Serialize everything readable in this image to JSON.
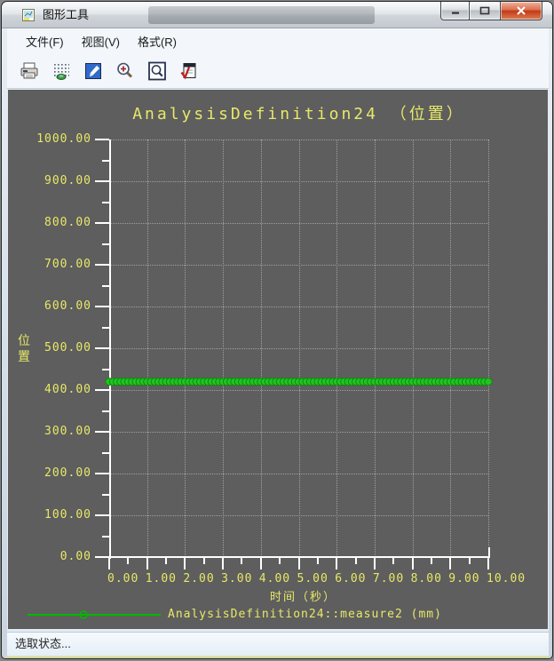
{
  "window": {
    "title": "图形工具"
  },
  "titlebar_controls": {
    "minimize": "minimize",
    "maximize": "maximize",
    "close": "close"
  },
  "menu": {
    "items": [
      {
        "label": "文件(F)"
      },
      {
        "label": "视图(V)"
      },
      {
        "label": "格式(R)"
      }
    ]
  },
  "toolbar": {
    "buttons": [
      {
        "icon": "print-icon"
      },
      {
        "icon": "grid-redraw-icon"
      },
      {
        "icon": "edit-graph-icon"
      },
      {
        "icon": "zoom-in-icon"
      },
      {
        "icon": "zoom-fit-icon"
      },
      {
        "icon": "apply-check-icon"
      }
    ]
  },
  "chart_data": {
    "type": "line",
    "title": "AnalysisDefinition24 （位置）",
    "xlabel": "时间（秒）",
    "ylabel": "位置",
    "xlim": [
      0,
      10
    ],
    "ylim": [
      0,
      1000
    ],
    "x_major_step": 1,
    "x_minor_step": 0.5,
    "y_major_step": 100,
    "y_minor_step": 50,
    "x_tick_labels": [
      "0.00",
      "1.00",
      "2.00",
      "3.00",
      "4.00",
      "5.00",
      "6.00",
      "7.00",
      "8.00",
      "9.00",
      "10.00"
    ],
    "y_tick_labels": [
      "0.00",
      "100.00",
      "200.00",
      "300.00",
      "400.00",
      "500.00",
      "600.00",
      "700.00",
      "800.00",
      "900.00",
      "1000.00"
    ],
    "grid": true,
    "legend_position": "bottom",
    "series": [
      {
        "name": "AnalysisDefinition24::measure2 (mm)",
        "color": "#21c421",
        "marker_stroke": "#0c8c0c",
        "marker": "circle",
        "x_start": 0,
        "x_end": 10,
        "x_step": 0.1,
        "constant_y": 420
      }
    ],
    "plot_bg": "#5e5e5e",
    "text_color": "#e8e868",
    "axis_color": "#ffffff",
    "grid_color": "#9f9f9f",
    "legend_line_color": "#00b800"
  },
  "status": {
    "text": "选取状态..."
  }
}
